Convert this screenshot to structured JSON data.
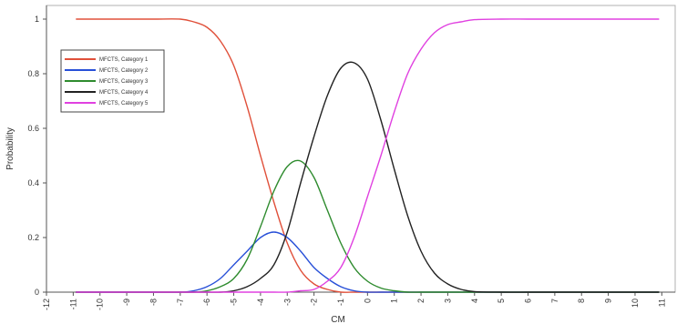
{
  "chart_data": {
    "type": "line",
    "title": "",
    "xlabel": "CM",
    "ylabel": "Probability",
    "xlim": [
      -12,
      11.5
    ],
    "ylim": [
      0,
      1.05
    ],
    "xticks": [
      -12,
      -11,
      -10,
      -9,
      -8,
      -7,
      -6,
      -5,
      -4,
      -3,
      -2,
      -1,
      0,
      1,
      2,
      3,
      4,
      5,
      6,
      7,
      8,
      9,
      10,
      11
    ],
    "yticks": [
      0,
      0.2,
      0.4,
      0.6,
      0.8,
      1
    ],
    "ytick_labels": [
      "0",
      "0.2",
      "0.4",
      "0.6",
      "0.8",
      "1"
    ],
    "grid": false,
    "legend_position": "upper-left",
    "x": [
      -10.9,
      -10,
      -9,
      -8,
      -7,
      -6.5,
      -6,
      -5.5,
      -5,
      -4.5,
      -4,
      -3.5,
      -3,
      -2.5,
      -2,
      -1.5,
      -1,
      -0.5,
      0,
      0.5,
      1,
      1.5,
      2,
      2.5,
      3,
      3.5,
      4,
      5,
      6,
      7,
      8,
      9,
      10,
      10.9
    ],
    "series": [
      {
        "name": "MFCTS, Category 1",
        "color": "#e0503a",
        "values": [
          1,
          1,
          1,
          1,
          1,
          0.99,
          0.97,
          0.92,
          0.83,
          0.68,
          0.5,
          0.33,
          0.18,
          0.08,
          0.03,
          0.01,
          0,
          0,
          0,
          0,
          0,
          0,
          0,
          0,
          0,
          0,
          0,
          0,
          0,
          0,
          0,
          0,
          0,
          0
        ]
      },
      {
        "name": "MFCTS, Category 2",
        "color": "#2850d8",
        "values": [
          0,
          0,
          0,
          0,
          0,
          0.005,
          0.02,
          0.05,
          0.1,
          0.15,
          0.2,
          0.22,
          0.2,
          0.15,
          0.09,
          0.05,
          0.02,
          0.005,
          0,
          0,
          0,
          0,
          0,
          0,
          0,
          0,
          0,
          0,
          0,
          0,
          0,
          0,
          0,
          0
        ]
      },
      {
        "name": "MFCTS, Category 3",
        "color": "#2e8b2e",
        "values": [
          0,
          0,
          0,
          0,
          0,
          0,
          0.005,
          0.02,
          0.05,
          0.12,
          0.24,
          0.37,
          0.46,
          0.48,
          0.42,
          0.3,
          0.18,
          0.09,
          0.04,
          0.015,
          0.005,
          0,
          0,
          0,
          0,
          0,
          0,
          0,
          0,
          0,
          0,
          0,
          0,
          0
        ]
      },
      {
        "name": "MFCTS, Category 4",
        "color": "#222222",
        "values": [
          0,
          0,
          0,
          0,
          0,
          0,
          0,
          0,
          0.005,
          0.02,
          0.05,
          0.1,
          0.22,
          0.4,
          0.57,
          0.72,
          0.82,
          0.84,
          0.78,
          0.63,
          0.45,
          0.28,
          0.15,
          0.07,
          0.03,
          0.01,
          0.002,
          0,
          0,
          0,
          0,
          0,
          0,
          0
        ]
      },
      {
        "name": "MFCTS, Category 5",
        "color": "#e040e0",
        "values": [
          0,
          0,
          0,
          0,
          0,
          0,
          0,
          0,
          0,
          0,
          0,
          0,
          0,
          0.005,
          0.01,
          0.04,
          0.09,
          0.2,
          0.35,
          0.5,
          0.66,
          0.8,
          0.89,
          0.95,
          0.98,
          0.99,
          0.998,
          1,
          1,
          1,
          1,
          1,
          1,
          1
        ]
      }
    ]
  }
}
